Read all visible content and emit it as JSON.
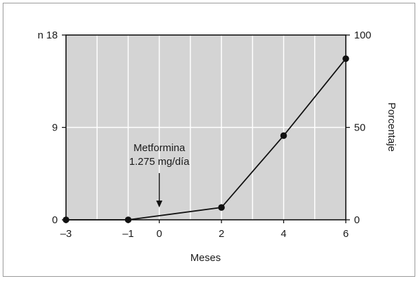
{
  "chart_data": {
    "type": "line",
    "x": [
      -3,
      -1,
      2,
      4,
      6
    ],
    "y": [
      0,
      0,
      1.2,
      8.2,
      15.7
    ],
    "xlim": [
      -3,
      6
    ],
    "ylim_left": [
      0,
      18
    ],
    "ylim_right": [
      0,
      100
    ],
    "xticks": [
      -3,
      -1,
      0,
      2,
      4,
      6
    ],
    "xtick_labels": [
      "–3",
      "–1",
      "0",
      "2",
      "4",
      "6"
    ],
    "yticks_left": [
      0,
      9,
      18
    ],
    "ytick_labels_left": [
      "0",
      "9",
      "n 18"
    ],
    "yticks_right": [
      0,
      50,
      100
    ],
    "ytick_labels_right": [
      "0",
      "50",
      "100"
    ],
    "xlabel": "Meses",
    "ylabel_right": "Porcentaje",
    "vertical_grid": [
      -2,
      -1,
      0,
      1,
      2,
      3,
      4,
      5
    ],
    "horizontal_grid": [
      9
    ],
    "annotation": {
      "lines": [
        "Metformina",
        "1.275 mg/día"
      ],
      "x": 0
    },
    "colors": {
      "plot_background": "#d4d4d4",
      "grid": "#ffffff",
      "line": "#111111",
      "frame": "#9a9a9a"
    }
  }
}
